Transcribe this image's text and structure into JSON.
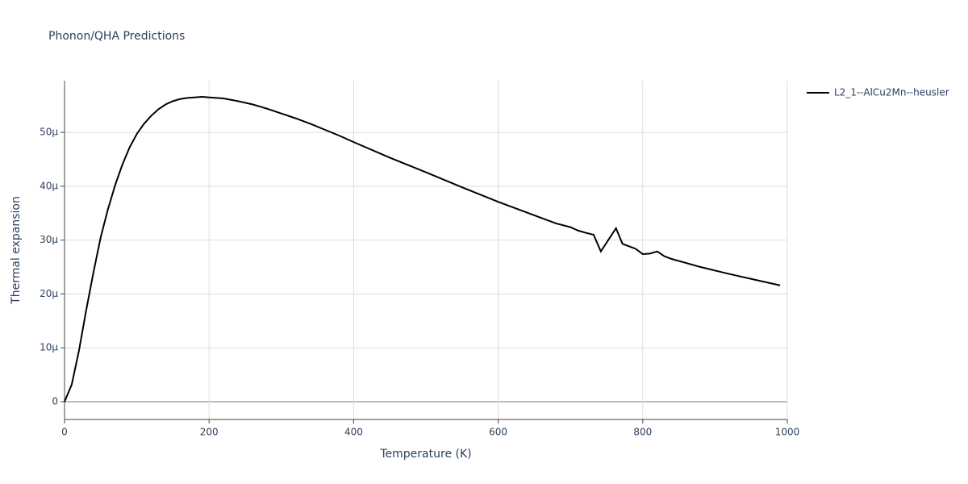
{
  "chart_data": {
    "type": "line",
    "title": "Phonon/QHA Predictions",
    "x_label": "Temperature (K)",
    "y_label": "Thermal expansion",
    "xlim": [
      0,
      1000
    ],
    "xticks": [
      0,
      200,
      400,
      600,
      800,
      1000
    ],
    "ylim": [
      -3.3e-06,
      5.96e-05
    ],
    "yticks": [
      0,
      {
        "value": 1e-05,
        "label": "10μ"
      },
      {
        "value": 2e-05,
        "label": "20μ"
      },
      {
        "value": 3e-05,
        "label": "30μ"
      },
      {
        "value": 4e-05,
        "label": "40μ"
      },
      {
        "value": 5e-05,
        "label": "50μ"
      }
    ],
    "grid": true,
    "legend": "right",
    "x": [
      0,
      10,
      20,
      30,
      40,
      50,
      60,
      70,
      80,
      90,
      100,
      110,
      120,
      130,
      140,
      150,
      160,
      170,
      180,
      190,
      200,
      220,
      240,
      260,
      280,
      300,
      320,
      340,
      360,
      380,
      400,
      450,
      500,
      550,
      600,
      650,
      680,
      700,
      710,
      720,
      732,
      742,
      763,
      772,
      790,
      800,
      810,
      820,
      830,
      840,
      880,
      920,
      960,
      990
    ],
    "series": [
      {
        "name": "L2_1--AlCu2Mn--heusler",
        "color": "#000000",
        "values": [
          0,
          3.2e-06,
          9.5e-06,
          1.7e-05,
          2.4e-05,
          3.05e-05,
          3.57e-05,
          4.02e-05,
          4.4e-05,
          4.72e-05,
          4.97e-05,
          5.16e-05,
          5.31e-05,
          5.43e-05,
          5.52e-05,
          5.58e-05,
          5.62e-05,
          5.64e-05,
          5.65e-05,
          5.66e-05,
          5.65e-05,
          5.63e-05,
          5.58e-05,
          5.52e-05,
          5.44e-05,
          5.35e-05,
          5.26e-05,
          5.16e-05,
          5.05e-05,
          4.94e-05,
          4.82e-05,
          4.53e-05,
          4.26e-05,
          3.98e-05,
          3.71e-05,
          3.46e-05,
          3.31e-05,
          3.24e-05,
          3.18e-05,
          3.14e-05,
          3.1e-05,
          2.79e-05,
          3.22e-05,
          2.93e-05,
          2.84e-05,
          2.74e-05,
          2.75e-05,
          2.79e-05,
          2.7e-05,
          2.65e-05,
          2.5e-05,
          2.37e-05,
          2.25e-05,
          2.16e-05
        ]
      }
    ]
  }
}
